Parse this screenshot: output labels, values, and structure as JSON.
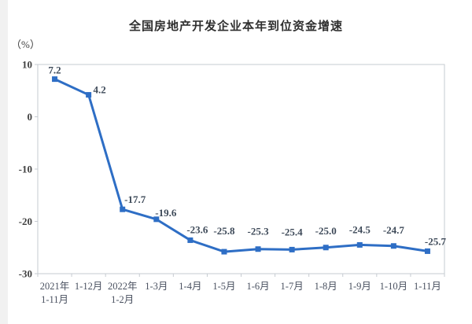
{
  "page": {
    "background": "#ffffff",
    "left_gutter_color": "#f1f1f1"
  },
  "chart_data": {
    "type": "line",
    "title": "全国房地产开发企业本年到位资金增速",
    "unit_label": "（%）",
    "categories": [
      "2021年\n1-11月",
      "1-12月",
      "2022年\n1-2月",
      "1-3月",
      "1-4月",
      "1-5月",
      "1-6月",
      "1-7月",
      "1-8月",
      "1-9月",
      "1-10月",
      "1-11月"
    ],
    "values": [
      7.2,
      4.2,
      -17.7,
      -19.6,
      -23.6,
      -25.8,
      -25.3,
      -25.4,
      -25.0,
      -24.5,
      -24.7,
      -25.7
    ],
    "data_labels": [
      "7.2",
      "4.2",
      "-17.7",
      "-19.6",
      "-23.6",
      "-25.8",
      "-25.3",
      "-25.4",
      "-25.0",
      "-24.5",
      "-24.7",
      "-25.7"
    ],
    "ylim": [
      -30,
      10
    ],
    "yticks": [
      10,
      0,
      -10,
      -20,
      -30
    ],
    "xlabel": "",
    "ylabel": "（%）",
    "grid": false,
    "legend": "none",
    "line_color": "#2E6EC5",
    "marker": "square",
    "axis_color": "#c6cbd1",
    "tick_label_color": "#404040",
    "x_label_color": "#4a5160",
    "point_label_color": "#3e4a59",
    "title_color": "#2f2f2f"
  }
}
